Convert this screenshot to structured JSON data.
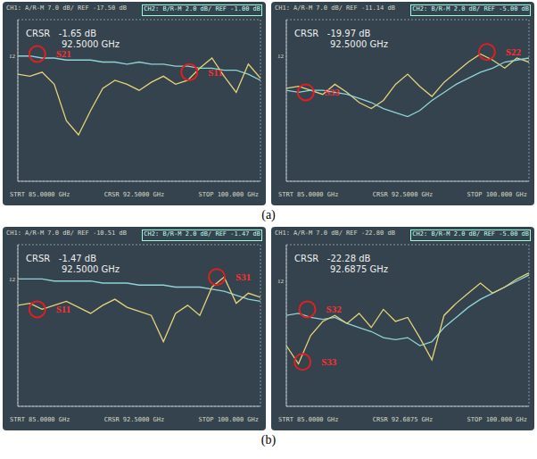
{
  "captions": [
    "(a)",
    "(b)"
  ],
  "chart_data": [
    {
      "type": "line",
      "header": [
        "CH1: A/R-M  7.0 dB/ REF -17.50 dB",
        "CH2: B/R-M  2.0 dB/ REF -1.00 dB"
      ],
      "cursor_label": "CRSR",
      "cursor_value": "-1.65 dB",
      "cursor_freq": "92.5000 GHz",
      "footer": [
        "STRT 85.0000 GHz",
        "CRSR 92.5000 GHz",
        "STOP 100.000 GHz"
      ],
      "ref_marker": {
        "text": "12",
        "y": 6.2
      },
      "x": [
        85,
        85.75,
        86.5,
        87.25,
        88,
        88.75,
        89.5,
        90.25,
        91,
        91.75,
        92.5,
        93.25,
        94,
        94.75,
        95.5,
        96.25,
        97,
        97.75,
        98.5,
        99.25,
        100
      ],
      "xlim": [
        85,
        100
      ],
      "xticks": [
        85,
        86.5,
        88,
        89.5,
        91,
        92.5,
        94,
        95.5,
        97,
        98.5,
        100
      ],
      "ylim": [
        0,
        8
      ],
      "yticks": [
        0,
        1,
        2,
        3,
        4,
        5,
        6,
        7,
        8
      ],
      "grid": true,
      "tick_labels": false,
      "series": [
        {
          "name": "S21",
          "color": "#8fd3d8",
          "values": [
            6.2,
            6.2,
            6.1,
            6.1,
            6.0,
            6.0,
            6.0,
            5.9,
            5.9,
            5.8,
            5.9,
            5.8,
            5.8,
            5.7,
            5.7,
            5.6,
            5.6,
            5.5,
            5.5,
            5.3,
            5.0
          ]
        },
        {
          "name": "S11",
          "color": "#e6d27a",
          "values": [
            5.3,
            5.2,
            5.4,
            4.8,
            3.0,
            2.3,
            3.5,
            4.6,
            5.0,
            4.8,
            4.5,
            4.9,
            5.2,
            4.8,
            5.0,
            5.6,
            6.1,
            5.2,
            4.4,
            5.8,
            5.1
          ]
        }
      ],
      "annotations": [
        {
          "text": "S21",
          "x": 86.2,
          "y": 6.3
        },
        {
          "text": "S11",
          "x": 95.6,
          "y": 5.4
        }
      ]
    },
    {
      "type": "line",
      "header": [
        "CH1: A/R-M  7.0 dB/ REF -11.14 dB",
        "CH2: B/R-M  2.0 dB/ REF -5.00 dB"
      ],
      "cursor_label": "CRSR",
      "cursor_value": "-19.97 dB",
      "cursor_freq": "92.5000 GHz",
      "footer": [
        "STRT 85.0000 GHz",
        "CRSR 92.5000 GHz",
        "STOP 100.000 GHz"
      ],
      "ref_marker": {
        "text": "12",
        "y": 6.2
      },
      "x": [
        85,
        85.75,
        86.5,
        87.25,
        88,
        88.75,
        89.5,
        90.25,
        91,
        91.75,
        92.5,
        93.25,
        94,
        94.75,
        95.5,
        96.25,
        97,
        97.75,
        98.5,
        99.25,
        100
      ],
      "xlim": [
        85,
        100
      ],
      "xticks": [
        85,
        86.5,
        88,
        89.5,
        91,
        92.5,
        94,
        95.5,
        97,
        98.5,
        100
      ],
      "ylim": [
        0,
        8
      ],
      "yticks": [
        0,
        1,
        2,
        3,
        4,
        5,
        6,
        7,
        8
      ],
      "grid": true,
      "tick_labels": false,
      "series": [
        {
          "name": "S22",
          "color": "#e6d27a",
          "values": [
            4.6,
            4.7,
            4.5,
            4.3,
            4.8,
            4.4,
            3.9,
            3.6,
            4.0,
            4.8,
            5.3,
            4.7,
            4.2,
            4.9,
            5.4,
            5.9,
            6.3,
            6.0,
            5.6,
            6.1,
            5.9
          ]
        },
        {
          "name": "S33",
          "color": "#8fd3d8",
          "values": [
            4.5,
            4.4,
            4.5,
            4.5,
            4.4,
            4.3,
            4.1,
            3.9,
            3.6,
            3.4,
            3.2,
            3.5,
            4.0,
            4.4,
            4.8,
            5.1,
            5.4,
            5.6,
            5.9,
            6.0,
            6.1
          ]
        }
      ],
      "annotations": [
        {
          "text": "S33",
          "x": 86.2,
          "y": 4.4
        },
        {
          "text": "S22",
          "x": 97.4,
          "y": 6.4
        }
      ]
    },
    {
      "type": "line",
      "header": [
        "CH1: A/R-M  7.0 dB/ REF -10.51 dB",
        "CH2: B/R-M  2.0 dB/ REF -1.47 dB"
      ],
      "cursor_label": "CRSR",
      "cursor_value": "-1.47 dB",
      "cursor_freq": "92.5000 GHz",
      "footer": [
        "STRT 85.0000 GHz",
        "CRSR 92.5000 GHz",
        "STOP 100.000 GHz"
      ],
      "ref_marker": {
        "text": "12",
        "y": 6.3
      },
      "x": [
        85,
        85.75,
        86.5,
        87.25,
        88,
        88.75,
        89.5,
        90.25,
        91,
        91.75,
        92.5,
        93.25,
        94,
        94.75,
        95.5,
        96.25,
        97,
        97.75,
        98.5,
        99.25,
        100
      ],
      "xlim": [
        85,
        100
      ],
      "xticks": [
        85,
        86.5,
        88,
        89.5,
        91,
        92.5,
        94,
        95.5,
        97,
        98.5,
        100
      ],
      "ylim": [
        0,
        8
      ],
      "yticks": [
        0,
        1,
        2,
        3,
        4,
        5,
        6,
        7,
        8
      ],
      "grid": true,
      "tick_labels": false,
      "series": [
        {
          "name": "S31",
          "color": "#8fd3d8",
          "values": [
            6.3,
            6.3,
            6.3,
            6.2,
            6.2,
            6.2,
            6.2,
            6.1,
            6.1,
            6.1,
            6.0,
            6.0,
            6.0,
            5.9,
            5.9,
            5.9,
            5.8,
            5.7,
            5.5,
            5.3,
            5.2
          ]
        },
        {
          "name": "S11",
          "color": "#e6d27a",
          "values": [
            5.0,
            5.1,
            4.8,
            5.0,
            5.2,
            4.9,
            4.6,
            5.0,
            5.3,
            4.9,
            4.7,
            4.5,
            3.2,
            4.6,
            5.0,
            4.5,
            5.9,
            6.4,
            5.1,
            5.6,
            5.4
          ]
        }
      ],
      "annotations": [
        {
          "text": "S31",
          "x": 97.3,
          "y": 6.4
        },
        {
          "text": "S11",
          "x": 86.2,
          "y": 4.8
        }
      ]
    },
    {
      "type": "line",
      "header": [
        "CH1: A/R-M  7.0 dB/ REF -22.80 dB",
        "CH2: B/R-M  2.0 dB/ REF -5.00 dB"
      ],
      "cursor_label": "CRSR",
      "cursor_value": "-22.28 dB",
      "cursor_freq": "92.6875 GHz",
      "footer": [
        "STRT 85.0000 GHz",
        "CRSR 92.6875 GHz",
        "STOP 100.000 GHz"
      ],
      "ref_marker": {
        "text": "12",
        "y": 6.2
      },
      "x": [
        85,
        85.75,
        86.5,
        87.25,
        88,
        88.75,
        89.5,
        90.25,
        91,
        91.75,
        92.5,
        93.25,
        94,
        94.75,
        95.5,
        96.25,
        97,
        97.75,
        98.5,
        99.25,
        100
      ],
      "xlim": [
        85,
        100
      ],
      "xticks": [
        85,
        86.5,
        88,
        89.5,
        91,
        92.5,
        94,
        95.5,
        97,
        98.5,
        100
      ],
      "ylim": [
        0,
        8
      ],
      "yticks": [
        0,
        1,
        2,
        3,
        4,
        5,
        6,
        7,
        8
      ],
      "grid": true,
      "tick_labels": false,
      "series": [
        {
          "name": "S32",
          "color": "#8fd3d8",
          "values": [
            4.5,
            4.6,
            4.4,
            4.3,
            4.4,
            4.1,
            3.9,
            3.7,
            3.4,
            3.3,
            3.4,
            3.0,
            3.2,
            3.9,
            4.4,
            4.9,
            5.3,
            5.6,
            5.9,
            6.2,
            6.5
          ]
        },
        {
          "name": "S33",
          "color": "#e6d27a",
          "values": [
            3.0,
            2.1,
            3.5,
            4.2,
            4.5,
            4.1,
            4.6,
            3.9,
            4.8,
            4.2,
            4.4,
            3.4,
            2.3,
            4.5,
            5.1,
            5.6,
            6.1,
            5.6,
            5.9,
            6.3,
            6.6
          ]
        }
      ],
      "annotations": [
        {
          "text": "S32",
          "x": 86.3,
          "y": 4.8
        },
        {
          "text": "S33",
          "x": 86.0,
          "y": 2.2
        }
      ]
    }
  ]
}
